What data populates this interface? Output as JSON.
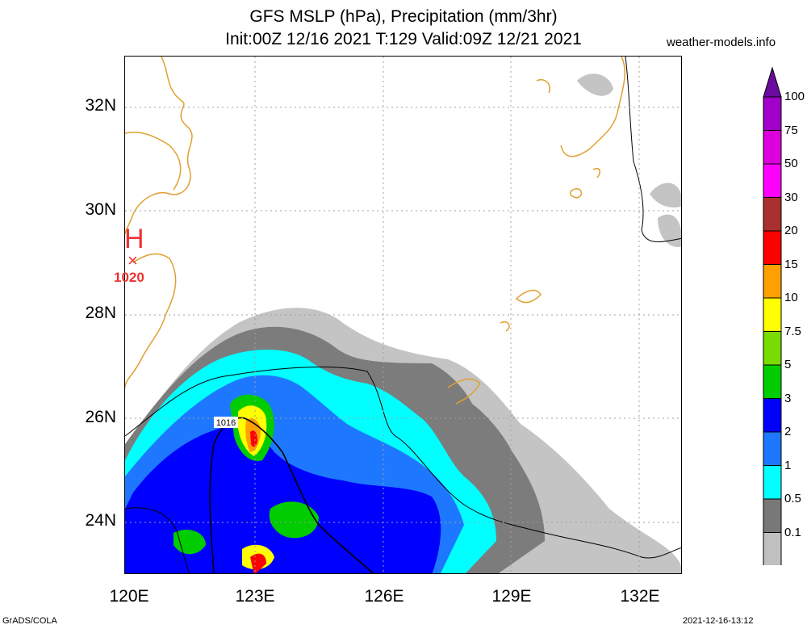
{
  "header": {
    "title_line1": "GFS MSLP (hPa), Precipitation (mm/3hr)",
    "title_line2": "Init:00Z 12/16 2021 T:129 Valid:09Z 12/21 2021",
    "site": "weather-models.info"
  },
  "footer": {
    "left": "GrADS/COLA",
    "right": "2021-12-16-13:12"
  },
  "axes": {
    "lat_labels": [
      "32N",
      "30N",
      "28N",
      "26N",
      "24N"
    ],
    "lon_labels": [
      "120E",
      "123E",
      "126E",
      "129E",
      "132E"
    ]
  },
  "pressure": {
    "high_symbol": "H",
    "high_marker": "×",
    "high_value": "1020",
    "isobar_label": "1016"
  },
  "legend": {
    "labels": [
      "100",
      "75",
      "50",
      "30",
      "20",
      "15",
      "10",
      "7.5",
      "5",
      "3",
      "2",
      "1",
      "0.5",
      "0.1"
    ],
    "colors": [
      "#a000c8",
      "#dc00dc",
      "#ff00ff",
      "#aa3030",
      "#ff0000",
      "#ffa000",
      "#ffff00",
      "#78dc00",
      "#00cc00",
      "#0000ff",
      "#1e78ff",
      "#00ffff",
      "#787878",
      "#c0c0c0"
    ],
    "top_color": "#6a0ba0"
  }
}
